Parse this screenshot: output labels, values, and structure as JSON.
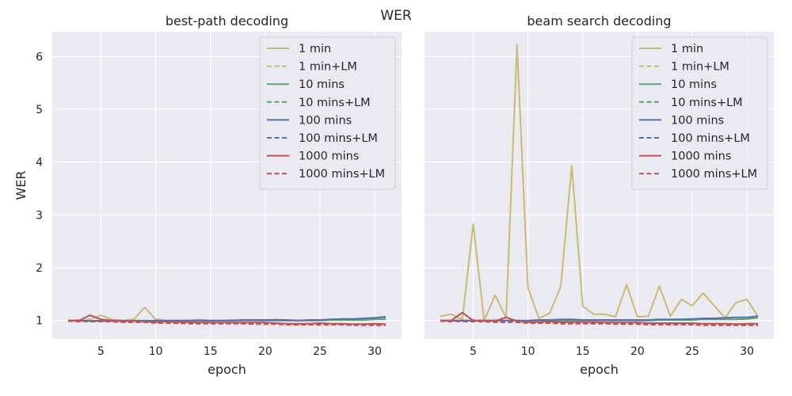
{
  "suptitle": "WER",
  "colors": {
    "background": "#eaeaf2",
    "grid": "#ffffff",
    "1 min": "#ccb974",
    "10 mins": "#55a868",
    "100 mins": "#4c72b0",
    "1000 mins": "#c44e52"
  },
  "chart_data": [
    {
      "type": "line",
      "title": "best-path decoding",
      "xlabel": "epoch",
      "ylabel": "WER",
      "xlim": [
        0.55,
        32.45
      ],
      "ylim": [
        0.65,
        6.47
      ],
      "xticks": [
        5,
        10,
        15,
        20,
        25,
        30
      ],
      "yticks": [
        1,
        2,
        3,
        4,
        5,
        6
      ],
      "grid": true,
      "legend": "upper right",
      "x": [
        2,
        3,
        4,
        5,
        6,
        7,
        8,
        9,
        10,
        11,
        12,
        13,
        14,
        15,
        16,
        17,
        18,
        19,
        20,
        21,
        22,
        23,
        24,
        25,
        26,
        27,
        28,
        29,
        30,
        31
      ],
      "series": [
        {
          "name": "1 min",
          "color": "#ccb974",
          "dash": false,
          "values": [
            1.0,
            1.0,
            1.02,
            1.1,
            1.02,
            1.0,
            1.02,
            1.25,
            1.02,
            1.0,
            1.0,
            1.0,
            1.02,
            1.0,
            1.0,
            1.01,
            1.01,
            1.01,
            1.0,
            1.02,
            1.0,
            1.0,
            1.01,
            1.01,
            1.02,
            1.02,
            1.01,
            1.02,
            1.03,
            1.05
          ]
        },
        {
          "name": "1 min+LM",
          "color": "#ccb974",
          "dash": true,
          "values": [
            0.99,
            0.98,
            0.99,
            0.98,
            0.98,
            0.98,
            0.98,
            0.97,
            0.96,
            0.96,
            0.96,
            0.95,
            0.95,
            0.95,
            0.95,
            0.95,
            0.95,
            0.95,
            0.95,
            0.94,
            0.93,
            0.93,
            0.93,
            0.93,
            0.93,
            0.93,
            0.92,
            0.92,
            0.92,
            0.92
          ]
        },
        {
          "name": "10 mins",
          "color": "#55a868",
          "dash": false,
          "values": [
            1.0,
            1.0,
            0.99,
            1.0,
            1.0,
            1.0,
            1.0,
            1.0,
            0.99,
            0.99,
            0.99,
            1.0,
            1.0,
            0.99,
            1.0,
            1.0,
            1.0,
            1.0,
            1.0,
            1.0,
            1.0,
            1.0,
            1.0,
            1.0,
            1.01,
            1.01,
            1.01,
            1.01,
            1.02,
            1.03
          ]
        },
        {
          "name": "10 mins+LM",
          "color": "#55a868",
          "dash": true,
          "values": [
            0.99,
            0.99,
            0.98,
            0.98,
            0.98,
            0.97,
            0.97,
            0.97,
            0.96,
            0.96,
            0.96,
            0.95,
            0.95,
            0.95,
            0.95,
            0.95,
            0.95,
            0.94,
            0.94,
            0.94,
            0.93,
            0.93,
            0.93,
            0.93,
            0.93,
            0.93,
            0.92,
            0.92,
            0.92,
            0.92
          ]
        },
        {
          "name": "100 mins",
          "color": "#4c72b0",
          "dash": false,
          "values": [
            1.0,
            1.0,
            0.99,
            0.99,
            0.99,
            0.99,
            0.99,
            0.99,
            1.0,
            1.0,
            1.0,
            1.0,
            1.0,
            1.0,
            1.0,
            1.0,
            1.01,
            1.01,
            1.01,
            1.01,
            1.01,
            1.0,
            1.01,
            1.01,
            1.02,
            1.03,
            1.03,
            1.04,
            1.05,
            1.07
          ]
        },
        {
          "name": "100 mins+LM",
          "color": "#4c72b0",
          "dash": true,
          "values": [
            0.99,
            0.99,
            0.98,
            0.98,
            0.98,
            0.97,
            0.97,
            0.97,
            0.96,
            0.96,
            0.96,
            0.95,
            0.95,
            0.95,
            0.95,
            0.95,
            0.95,
            0.94,
            0.94,
            0.94,
            0.93,
            0.93,
            0.93,
            0.93,
            0.93,
            0.93,
            0.92,
            0.92,
            0.92,
            0.92
          ]
        },
        {
          "name": "1000 mins",
          "color": "#c44e52",
          "dash": false,
          "values": [
            1.0,
            1.0,
            1.1,
            1.02,
            1.0,
            0.99,
            0.99,
            0.98,
            0.97,
            0.98,
            0.97,
            0.97,
            0.96,
            0.96,
            0.96,
            0.96,
            0.96,
            0.96,
            0.96,
            0.95,
            0.94,
            0.94,
            0.94,
            0.95,
            0.94,
            0.94,
            0.93,
            0.93,
            0.94,
            0.93
          ]
        },
        {
          "name": "1000 mins+LM",
          "color": "#c44e52",
          "dash": true,
          "values": [
            0.99,
            0.98,
            0.99,
            0.98,
            0.98,
            0.97,
            0.97,
            0.97,
            0.95,
            0.95,
            0.95,
            0.94,
            0.94,
            0.94,
            0.94,
            0.94,
            0.94,
            0.93,
            0.93,
            0.93,
            0.92,
            0.92,
            0.92,
            0.92,
            0.92,
            0.92,
            0.91,
            0.91,
            0.91,
            0.91
          ]
        }
      ]
    },
    {
      "type": "line",
      "title": "beam search decoding",
      "xlabel": "epoch",
      "ylabel": "",
      "xlim": [
        0.55,
        32.45
      ],
      "ylim": [
        0.65,
        6.47
      ],
      "xticks": [
        5,
        10,
        15,
        20,
        25,
        30
      ],
      "yticks": [
        1,
        2,
        3,
        4,
        5,
        6
      ],
      "grid": true,
      "legend": "upper right",
      "x": [
        2,
        3,
        4,
        5,
        6,
        7,
        8,
        9,
        10,
        11,
        12,
        13,
        14,
        15,
        16,
        17,
        18,
        19,
        20,
        21,
        22,
        23,
        24,
        25,
        26,
        27,
        28,
        29,
        30,
        31
      ],
      "series": [
        {
          "name": "1 min",
          "color": "#ccb974",
          "dash": false,
          "values": [
            1.08,
            1.12,
            1.02,
            2.82,
            1.0,
            1.48,
            1.05,
            6.22,
            1.62,
            1.04,
            1.14,
            1.65,
            3.93,
            1.27,
            1.12,
            1.12,
            1.07,
            1.68,
            1.07,
            1.08,
            1.65,
            1.08,
            1.4,
            1.28,
            1.52,
            1.28,
            1.05,
            1.34,
            1.4,
            1.08
          ]
        },
        {
          "name": "1 min+LM",
          "color": "#ccb974",
          "dash": true,
          "values": [
            1.0,
            1.0,
            0.99,
            0.99,
            0.98,
            0.98,
            0.98,
            0.97,
            0.96,
            0.96,
            0.96,
            0.95,
            0.95,
            0.95,
            0.95,
            0.95,
            0.95,
            0.95,
            0.94,
            0.94,
            0.93,
            0.93,
            0.93,
            0.93,
            0.93,
            0.93,
            0.92,
            0.92,
            0.92,
            0.92
          ]
        },
        {
          "name": "10 mins",
          "color": "#55a868",
          "dash": false,
          "values": [
            1.0,
            1.0,
            1.0,
            1.0,
            1.0,
            1.0,
            1.0,
            1.0,
            0.99,
            1.0,
            1.0,
            1.0,
            1.0,
            1.0,
            1.0,
            1.0,
            1.0,
            1.0,
            1.0,
            1.0,
            1.01,
            1.01,
            1.01,
            1.01,
            1.02,
            1.02,
            1.02,
            1.02,
            1.03,
            1.05
          ]
        },
        {
          "name": "10 mins+LM",
          "color": "#55a868",
          "dash": true,
          "values": [
            0.99,
            0.99,
            0.98,
            0.98,
            0.98,
            0.97,
            0.97,
            0.97,
            0.96,
            0.96,
            0.96,
            0.95,
            0.95,
            0.95,
            0.95,
            0.95,
            0.95,
            0.94,
            0.94,
            0.94,
            0.93,
            0.93,
            0.93,
            0.93,
            0.93,
            0.93,
            0.92,
            0.92,
            0.92,
            0.92
          ]
        },
        {
          "name": "100 mins",
          "color": "#4c72b0",
          "dash": false,
          "values": [
            1.0,
            1.0,
            1.0,
            1.0,
            1.0,
            1.0,
            1.0,
            1.0,
            1.0,
            1.01,
            1.01,
            1.02,
            1.02,
            1.01,
            1.01,
            1.01,
            1.01,
            1.01,
            1.01,
            1.01,
            1.02,
            1.02,
            1.02,
            1.03,
            1.04,
            1.04,
            1.05,
            1.06,
            1.06,
            1.08
          ]
        },
        {
          "name": "100 mins+LM",
          "color": "#4c72b0",
          "dash": true,
          "values": [
            0.99,
            0.99,
            0.98,
            0.98,
            0.98,
            0.97,
            0.97,
            0.97,
            0.96,
            0.96,
            0.96,
            0.95,
            0.95,
            0.95,
            0.95,
            0.95,
            0.95,
            0.94,
            0.94,
            0.94,
            0.93,
            0.93,
            0.93,
            0.93,
            0.93,
            0.93,
            0.92,
            0.92,
            0.92,
            0.92
          ]
        },
        {
          "name": "1000 mins",
          "color": "#c44e52",
          "dash": false,
          "values": [
            1.0,
            1.0,
            1.15,
            1.0,
            1.0,
            0.99,
            1.06,
            0.99,
            0.97,
            0.97,
            0.98,
            0.97,
            0.97,
            0.97,
            0.97,
            0.96,
            0.96,
            0.96,
            0.96,
            0.95,
            0.95,
            0.95,
            0.95,
            0.95,
            0.94,
            0.94,
            0.94,
            0.93,
            0.94,
            0.94
          ]
        },
        {
          "name": "1000 mins+LM",
          "color": "#c44e52",
          "dash": true,
          "values": [
            0.99,
            0.98,
            0.99,
            0.98,
            0.98,
            0.97,
            0.98,
            0.97,
            0.95,
            0.95,
            0.95,
            0.94,
            0.94,
            0.94,
            0.94,
            0.94,
            0.93,
            0.93,
            0.93,
            0.92,
            0.92,
            0.92,
            0.92,
            0.92,
            0.91,
            0.91,
            0.91,
            0.91,
            0.91,
            0.91
          ]
        }
      ]
    }
  ]
}
